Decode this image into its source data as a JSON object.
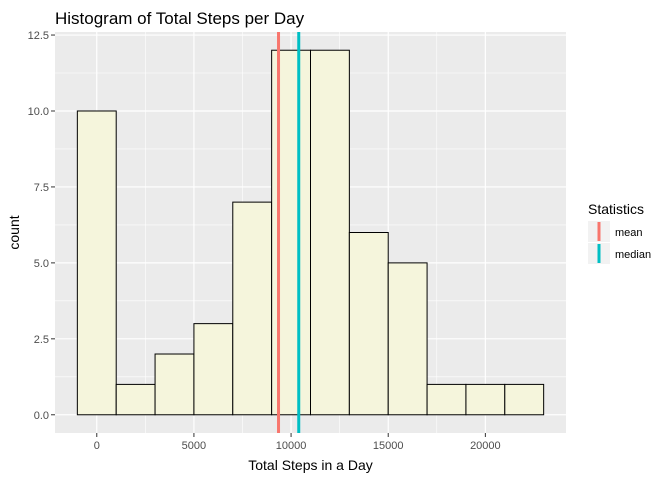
{
  "chart_data": {
    "type": "histogram",
    "title": "Histogram of Total Steps per Day",
    "xlabel": "Total Steps in a Day",
    "ylabel": "count",
    "xlim": [
      -2150,
      24150
    ],
    "ylim": [
      -0.6,
      12.6
    ],
    "x_ticks": [
      0,
      5000,
      10000,
      15000,
      20000
    ],
    "x_tick_labels": [
      "0",
      "5000",
      "10000",
      "15000",
      "20000"
    ],
    "y_ticks": [
      0,
      2.5,
      5,
      7.5,
      10,
      12.5
    ],
    "y_tick_labels": [
      "0.0",
      "2.5",
      "5.0",
      "7.5",
      "10.0",
      "12.5"
    ],
    "bin_width": 2000,
    "bins": [
      {
        "start": -1000,
        "end": 1000,
        "count": 10
      },
      {
        "start": 1000,
        "end": 3000,
        "count": 1
      },
      {
        "start": 3000,
        "end": 5000,
        "count": 2
      },
      {
        "start": 5000,
        "end": 7000,
        "count": 3
      },
      {
        "start": 7000,
        "end": 9000,
        "count": 7
      },
      {
        "start": 9000,
        "end": 11000,
        "count": 12
      },
      {
        "start": 11000,
        "end": 13000,
        "count": 12
      },
      {
        "start": 13000,
        "end": 15000,
        "count": 6
      },
      {
        "start": 15000,
        "end": 17000,
        "count": 5
      },
      {
        "start": 17000,
        "end": 19000,
        "count": 1
      },
      {
        "start": 19000,
        "end": 21000,
        "count": 1
      },
      {
        "start": 21000,
        "end": 23000,
        "count": 1
      }
    ],
    "bar_fill": "#f5f5dc",
    "bar_outline": "#000000",
    "panel_background": "#ebebeb",
    "grid": true,
    "reference_lines": [
      {
        "name": "mean",
        "value": 9354,
        "color": "#f8766d"
      },
      {
        "name": "median",
        "value": 10395,
        "color": "#00bfc4"
      }
    ],
    "legend": {
      "title": "Statistics",
      "placement": "right",
      "entries": [
        {
          "label": "mean",
          "color": "#f8766d"
        },
        {
          "label": "median",
          "color": "#00bfc4"
        }
      ]
    }
  }
}
